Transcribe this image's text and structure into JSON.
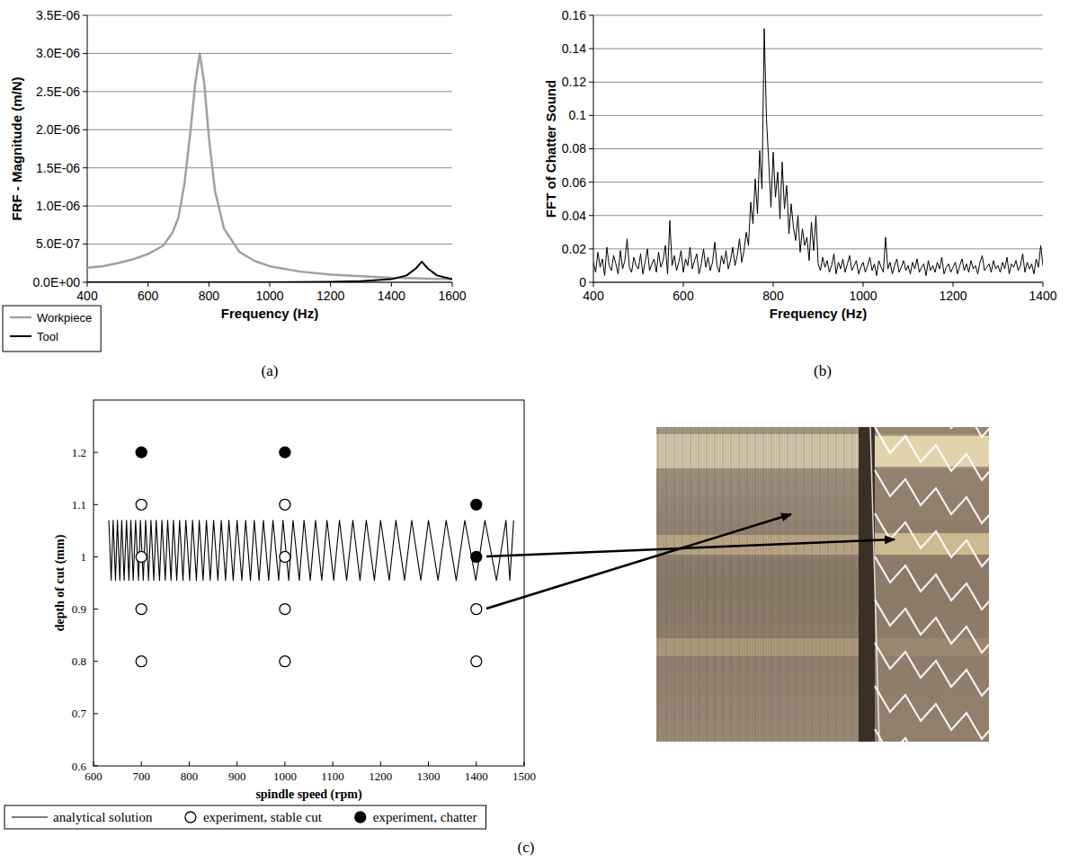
{
  "chart_data": [
    {
      "type": "line",
      "x_label": "Frequency (Hz)",
      "y_label": "FRF - Magnitude (m/N)",
      "caption": "(a)",
      "grid": true,
      "legend": "bottom-left",
      "xlim": [
        400,
        1600
      ],
      "xticks": [
        400,
        600,
        800,
        1000,
        1200,
        1400,
        1600
      ],
      "ylim": [
        0,
        3.5e-06
      ],
      "yticks": [
        {
          "value": 0,
          "label": "0.0E+00"
        },
        {
          "value": 5e-07,
          "label": "5.0E-07"
        },
        {
          "value": 1e-06,
          "label": "1.0E-06"
        },
        {
          "value": 1.5e-06,
          "label": "1.5E-06"
        },
        {
          "value": 2e-06,
          "label": "2.0E-06"
        },
        {
          "value": 2.5e-06,
          "label": "2.5E-06"
        },
        {
          "value": 3e-06,
          "label": "3.0E-06"
        },
        {
          "value": 3.5e-06,
          "label": "3.5E-06"
        }
      ],
      "x": [
        400,
        450,
        500,
        550,
        600,
        650,
        680,
        700,
        720,
        740,
        755,
        770,
        785,
        800,
        820,
        850,
        900,
        950,
        1000,
        1100,
        1200,
        1300,
        1400,
        1450,
        1480,
        1500,
        1520,
        1550,
        1600
      ],
      "series": [
        {
          "name": "Workpiece",
          "color": "#a0a0a0",
          "values": [
            1.9e-07,
            2.1e-07,
            2.5e-07,
            3e-07,
            3.7e-07,
            4.8e-07,
            6.5e-07,
            8.5e-07,
            1.3e-06,
            2e-06,
            2.6e-06,
            3e-06,
            2.6e-06,
            1.9e-06,
            1.2e-06,
            7e-07,
            4e-07,
            2.8e-07,
            2.1e-07,
            1.4e-07,
            1e-07,
            8e-08,
            6e-08,
            5.5e-08,
            5.2e-08,
            5e-08,
            4.8e-08,
            4.5e-08,
            4e-08
          ]
        },
        {
          "name": "Tool",
          "color": "#000000",
          "values": [
            0,
            0,
            0,
            0,
            0,
            0,
            0,
            0,
            0,
            0,
            0,
            0,
            0,
            0,
            0,
            0,
            0,
            0,
            0,
            3e-09,
            6e-09,
            1.4e-08,
            4e-08,
            9e-08,
            1.8e-07,
            2.7e-07,
            1.8e-07,
            9e-08,
            4e-08
          ]
        }
      ]
    },
    {
      "type": "line",
      "x_label": "Frequency (Hz)",
      "y_label": "FFT of Chatter Sound",
      "caption": "(b)",
      "grid": true,
      "xlim": [
        400,
        1400
      ],
      "xticks": [
        400,
        600,
        800,
        1000,
        1200,
        1400
      ],
      "ylim": [
        0,
        0.16
      ],
      "yticks": [
        0,
        0.02,
        0.04,
        0.06,
        0.08,
        0.1,
        0.12,
        0.14,
        0.16
      ],
      "x": [
        400,
        405,
        410,
        415,
        420,
        425,
        430,
        435,
        440,
        445,
        450,
        455,
        460,
        465,
        470,
        475,
        480,
        485,
        490,
        495,
        500,
        505,
        510,
        515,
        520,
        525,
        530,
        535,
        540,
        545,
        550,
        555,
        560,
        565,
        570,
        575,
        580,
        585,
        590,
        595,
        600,
        605,
        610,
        615,
        620,
        625,
        630,
        635,
        640,
        645,
        650,
        655,
        660,
        665,
        670,
        675,
        680,
        685,
        690,
        695,
        700,
        705,
        710,
        715,
        720,
        725,
        730,
        735,
        740,
        745,
        750,
        755,
        760,
        765,
        770,
        775,
        780,
        785,
        790,
        795,
        800,
        805,
        810,
        815,
        820,
        825,
        830,
        835,
        840,
        845,
        850,
        855,
        860,
        865,
        870,
        875,
        880,
        885,
        890,
        895,
        900,
        905,
        910,
        915,
        920,
        925,
        930,
        935,
        940,
        945,
        950,
        955,
        960,
        965,
        970,
        975,
        980,
        985,
        990,
        995,
        1000,
        1005,
        1010,
        1015,
        1020,
        1025,
        1030,
        1035,
        1040,
        1045,
        1050,
        1055,
        1060,
        1065,
        1070,
        1075,
        1080,
        1085,
        1090,
        1095,
        1100,
        1105,
        1110,
        1115,
        1120,
        1125,
        1130,
        1135,
        1140,
        1145,
        1150,
        1155,
        1160,
        1165,
        1170,
        1175,
        1180,
        1185,
        1190,
        1195,
        1200,
        1205,
        1210,
        1215,
        1220,
        1225,
        1230,
        1235,
        1240,
        1245,
        1250,
        1255,
        1260,
        1265,
        1270,
        1275,
        1280,
        1285,
        1290,
        1295,
        1300,
        1305,
        1310,
        1315,
        1320,
        1325,
        1330,
        1335,
        1340,
        1345,
        1350,
        1355,
        1360,
        1365,
        1370,
        1375,
        1380,
        1385,
        1390,
        1395,
        1400
      ],
      "series": [
        {
          "name": "FFT of Chatter Sound",
          "color": "#000000",
          "values": [
            0.012,
            0.006,
            0.018,
            0.009,
            0.014,
            0.004,
            0.021,
            0.01,
            0.007,
            0.016,
            0.011,
            0.005,
            0.019,
            0.008,
            0.013,
            0.026,
            0.009,
            0.006,
            0.015,
            0.01,
            0.008,
            0.017,
            0.005,
            0.012,
            0.02,
            0.007,
            0.011,
            0.014,
            0.006,
            0.018,
            0.009,
            0.013,
            0.022,
            0.005,
            0.037,
            0.01,
            0.016,
            0.007,
            0.012,
            0.019,
            0.006,
            0.014,
            0.01,
            0.021,
            0.008,
            0.013,
            0.017,
            0.005,
            0.011,
            0.02,
            0.009,
            0.015,
            0.007,
            0.012,
            0.024,
            0.01,
            0.006,
            0.016,
            0.011,
            0.019,
            0.008,
            0.013,
            0.021,
            0.01,
            0.016,
            0.026,
            0.012,
            0.019,
            0.03,
            0.022,
            0.048,
            0.035,
            0.062,
            0.041,
            0.079,
            0.056,
            0.152,
            0.098,
            0.072,
            0.045,
            0.078,
            0.051,
            0.066,
            0.038,
            0.072,
            0.044,
            0.058,
            0.029,
            0.047,
            0.033,
            0.025,
            0.04,
            0.018,
            0.032,
            0.022,
            0.027,
            0.013,
            0.036,
            0.019,
            0.04,
            0.011,
            0.007,
            0.015,
            0.009,
            0.013,
            0.006,
            0.01,
            0.017,
            0.005,
            0.012,
            0.008,
            0.014,
            0.006,
            0.011,
            0.016,
            0.007,
            0.01,
            0.013,
            0.005,
            0.009,
            0.012,
            0.006,
            0.01,
            0.015,
            0.007,
            0.011,
            0.004,
            0.013,
            0.009,
            0.006,
            0.027,
            0.008,
            0.012,
            0.005,
            0.01,
            0.014,
            0.006,
            0.009,
            0.013,
            0.007,
            0.01,
            0.005,
            0.012,
            0.008,
            0.014,
            0.006,
            0.009,
            0.011,
            0.004,
            0.013,
            0.007,
            0.01,
            0.006,
            0.012,
            0.008,
            0.015,
            0.005,
            0.009,
            0.011,
            0.006,
            0.009,
            0.012,
            0.005,
            0.01,
            0.014,
            0.007,
            0.011,
            0.006,
            0.013,
            0.008,
            0.01,
            0.005,
            0.012,
            0.016,
            0.007,
            0.009,
            0.011,
            0.006,
            0.013,
            0.008,
            0.01,
            0.006,
            0.012,
            0.008,
            0.015,
            0.005,
            0.011,
            0.009,
            0.013,
            0.007,
            0.01,
            0.017,
            0.006,
            0.012,
            0.008,
            0.011,
            0.005,
            0.014,
            0.009,
            0.022,
            0.01
          ]
        }
      ]
    },
    {
      "type": "line",
      "x_label": "spindle speed (rpm)",
      "y_label": "depth of cut (mm)",
      "caption": "(c)",
      "grid": false,
      "legend": "bottom",
      "xlim": [
        600,
        1500
      ],
      "xticks": [
        600,
        700,
        800,
        900,
        1000,
        1100,
        1200,
        1300,
        1400,
        1500
      ],
      "ylim": [
        0.6,
        1.3
      ],
      "yticks": [
        0.6,
        0.7,
        0.8,
        0.9,
        1,
        1.1,
        1.2
      ],
      "series": [
        {
          "name": "analytical solution",
          "type": "line",
          "color": "#000000",
          "x": [
            632,
            637,
            641,
            646,
            650,
            655,
            659,
            664,
            669,
            674,
            678,
            683,
            688,
            694,
            698,
            704,
            709,
            715,
            720,
            726,
            731,
            738,
            743,
            750,
            755,
            762,
            767,
            774,
            780,
            787,
            793,
            801,
            807,
            815,
            821,
            829,
            836,
            844,
            851,
            860,
            867,
            876,
            883,
            892,
            900,
            910,
            918,
            928,
            936,
            946,
            955,
            966,
            975,
            987,
            996,
            1008,
            1017,
            1030,
            1040,
            1053,
            1064,
            1077,
            1088,
            1102,
            1114,
            1129,
            1142,
            1157,
            1170,
            1187,
            1200,
            1218,
            1232,
            1250,
            1265,
            1284,
            1300,
            1320,
            1337,
            1358,
            1376,
            1399,
            1418,
            1442,
            1462,
            1470,
            1478
          ],
          "values": [
            1.07,
            0.955,
            1.07,
            0.955,
            1.07,
            0.955,
            1.07,
            0.955,
            1.07,
            0.955,
            1.07,
            0.955,
            1.07,
            0.955,
            1.07,
            0.955,
            1.07,
            0.955,
            1.07,
            0.955,
            1.07,
            0.955,
            1.07,
            0.955,
            1.07,
            0.955,
            1.07,
            0.955,
            1.07,
            0.955,
            1.07,
            0.955,
            1.07,
            0.955,
            1.07,
            0.955,
            1.07,
            0.955,
            1.07,
            0.955,
            1.07,
            0.955,
            1.07,
            0.955,
            1.07,
            0.955,
            1.07,
            0.955,
            1.07,
            0.955,
            1.07,
            0.955,
            1.07,
            0.955,
            1.07,
            0.955,
            1.07,
            0.955,
            1.07,
            0.955,
            1.07,
            0.955,
            1.07,
            0.955,
            1.07,
            0.955,
            1.07,
            0.955,
            1.07,
            0.955,
            1.07,
            0.955,
            1.07,
            0.955,
            1.07,
            0.955,
            1.07,
            0.955,
            1.07,
            0.955,
            1.07,
            0.955,
            1.07,
            0.955,
            1.07,
            0.955,
            1.07
          ]
        },
        {
          "name": "experiment, stable cut",
          "type": "scatter",
          "marker": "circle",
          "color": "#ffffff",
          "x": [
            700,
            700,
            700,
            700,
            1000,
            1000,
            1000,
            1000,
            1400,
            1400
          ],
          "values": [
            0.8,
            0.9,
            1.0,
            1.1,
            0.8,
            0.9,
            1.0,
            1.1,
            0.8,
            0.9
          ]
        },
        {
          "name": "experiment, chatter",
          "type": "scatter",
          "marker": "circle",
          "color": "#000000",
          "x": [
            700,
            1000,
            1400,
            1400
          ],
          "values": [
            1.2,
            1.2,
            1.0,
            1.1
          ]
        }
      ]
    }
  ]
}
